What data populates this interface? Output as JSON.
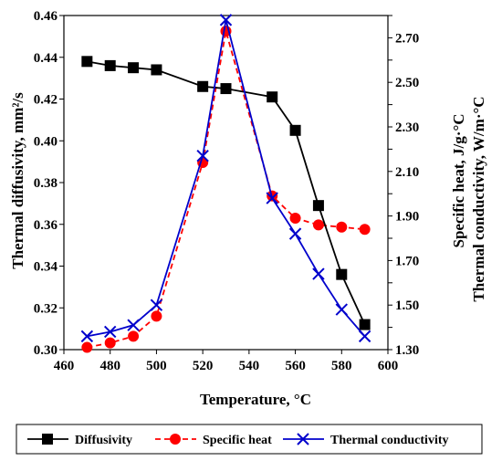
{
  "chart_data": {
    "type": "line",
    "x": [
      470,
      480,
      490,
      500,
      520,
      530,
      550,
      560,
      570,
      580,
      590
    ],
    "xlabel": "Temperature, °C",
    "xlim": [
      460,
      600
    ],
    "xticks": [
      "460",
      "480",
      "500",
      "520",
      "540",
      "560",
      "580",
      "600"
    ],
    "ylabel_left": "Thermal diffusivity, mm²/s",
    "ylim_left": [
      0.3,
      0.46
    ],
    "yticks_left": [
      "0.30",
      "0.32",
      "0.34",
      "0.36",
      "0.38",
      "0.40",
      "0.42",
      "0.44",
      "0.46"
    ],
    "ylabel_right_1": "Specific heat, J/g·°C",
    "ylabel_right_2": "Thermal conductivity, W/m·°C",
    "ylim_right": [
      1.3,
      2.8
    ],
    "yticks_right": [
      "1.30",
      "1.40",
      "1.50",
      "1.60",
      "1.70",
      "1.80",
      "1.90",
      "2.00",
      "2.10",
      "2.20",
      "2.30",
      "2.40",
      "2.50",
      "2.60",
      "2.70",
      "2.80"
    ],
    "grid": false,
    "legend_position": "bottom",
    "series": [
      {
        "name": "Diffusivity",
        "axis": "left",
        "color": "#000000",
        "marker": "square",
        "dash": "solid",
        "values": [
          0.438,
          0.436,
          0.435,
          0.434,
          0.426,
          0.425,
          0.421,
          0.405,
          0.369,
          0.336,
          0.312
        ]
      },
      {
        "name": "Specific heat",
        "axis": "right",
        "color": "#ff0000",
        "marker": "circle",
        "dash": "dashed",
        "values": [
          1.31,
          1.33,
          1.36,
          1.45,
          2.14,
          2.73,
          1.99,
          1.89,
          1.86,
          1.85,
          1.84
        ]
      },
      {
        "name": "Thermal conductivity",
        "axis": "right",
        "color": "#0000cc",
        "marker": "x",
        "dash": "solid",
        "values": [
          1.36,
          1.38,
          1.41,
          1.5,
          2.17,
          2.78,
          1.98,
          1.82,
          1.64,
          1.48,
          1.36
        ]
      }
    ]
  }
}
